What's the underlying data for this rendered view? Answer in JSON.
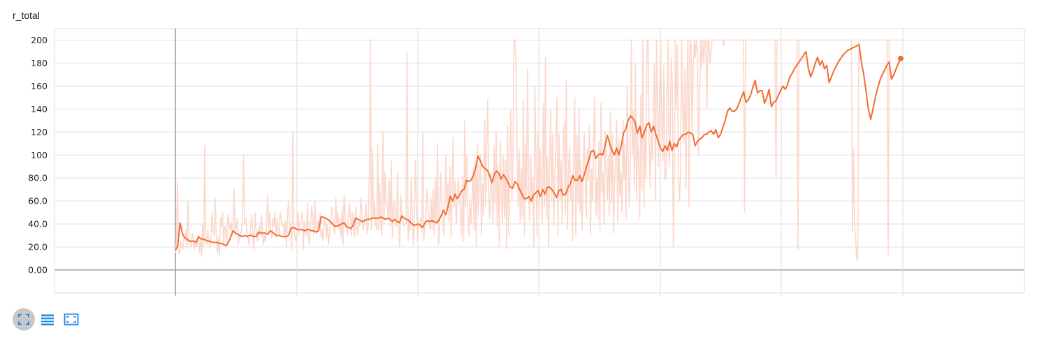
{
  "card": {
    "title": "r_total"
  },
  "colors": {
    "smoothed": "#f36c35",
    "raw": "#fbd8cc",
    "grid": "#dddddd",
    "axis": "#999999"
  },
  "toolbar": {
    "buttons": [
      {
        "name": "fit-domain-button",
        "icon": "expand-icon",
        "active": true
      },
      {
        "name": "toggle-log-button",
        "icon": "list-lines-icon",
        "active": false
      },
      {
        "name": "toggle-zoom-button",
        "icon": "dotted-frame-icon",
        "active": false
      }
    ]
  },
  "chart_data": {
    "type": "line",
    "title": "r_total",
    "xlabel": "",
    "ylabel": "",
    "ylim": [
      -20,
      210
    ],
    "yticks": [
      0,
      20,
      40,
      60,
      80,
      100,
      120,
      140,
      160,
      180,
      200
    ],
    "ytick_labels": [
      "0.00",
      "20.0",
      "40.0",
      "60.0",
      "80.0",
      "100",
      "120",
      "140",
      "160",
      "180",
      "200"
    ],
    "grid": true,
    "x_tick_labels_visible": false,
    "series": [
      {
        "role": "raw",
        "values": [
          15,
          25,
          78,
          15,
          14,
          25,
          20,
          18,
          28,
          25,
          35,
          18,
          60,
          30,
          22,
          20,
          32,
          28,
          18,
          24,
          20,
          25,
          30,
          15,
          28,
          12,
          40,
          20,
          108,
          30,
          22,
          35,
          25,
          20,
          28,
          50,
          35,
          30,
          62,
          30,
          15,
          28,
          12,
          45,
          38,
          50,
          22,
          38,
          35,
          22,
          48,
          40,
          35,
          42,
          30,
          38,
          70,
          30,
          38,
          45,
          22,
          30,
          28,
          35,
          42,
          100,
          40,
          45,
          35,
          30,
          22,
          28,
          40,
          48,
          25,
          18,
          50,
          35,
          25,
          28,
          38,
          30,
          48,
          35,
          22,
          30,
          25,
          40,
          65,
          35,
          50,
          33,
          28,
          45,
          38,
          50,
          28,
          45,
          35,
          30,
          50,
          45,
          38,
          40,
          28,
          42,
          20,
          50,
          60,
          40,
          35,
          18,
          120,
          40,
          28,
          25,
          35,
          50,
          30,
          42,
          45,
          50,
          18,
          42,
          35,
          30,
          58,
          28,
          22,
          40,
          55,
          48,
          30,
          60,
          38,
          32,
          42,
          35,
          50,
          28,
          35,
          25,
          45,
          42,
          28,
          40,
          22,
          30,
          40,
          55,
          48,
          38,
          32,
          62,
          40,
          50,
          35,
          45,
          28,
          55,
          22,
          65,
          48,
          35,
          30,
          45,
          58,
          48,
          30,
          50,
          40,
          28,
          55,
          38,
          30,
          42,
          38,
          62,
          50,
          35,
          40,
          48,
          58,
          32,
          38,
          78,
          200,
          35,
          105,
          45,
          58,
          40,
          35,
          110,
          35,
          75,
          38,
          30,
          120,
          40,
          85,
          60,
          55,
          45,
          78,
          38,
          95,
          28,
          55,
          60,
          40,
          38,
          85,
          35,
          20,
          65,
          48,
          42,
          38,
          40,
          40,
          190,
          25,
          45,
          35,
          80,
          50,
          22,
          40,
          95,
          60,
          25,
          40,
          38,
          45,
          32,
          120,
          25,
          40,
          48,
          70,
          55,
          45,
          35,
          62,
          35,
          70,
          30,
          80,
          40,
          110,
          22,
          35,
          85,
          70,
          48,
          30,
          55,
          100,
          48,
          75,
          42,
          90,
          28,
          70,
          115,
          55,
          78,
          40,
          65,
          80,
          60,
          50,
          30,
          82,
          25,
          130,
          55,
          100,
          45,
          30,
          62,
          40,
          60,
          88,
          35,
          95,
          20,
          110,
          48,
          80,
          100,
          30,
          75,
          48,
          130,
          55,
          110,
          148,
          60,
          45,
          85,
          72,
          40,
          108,
          58,
          120,
          38,
          90,
          20,
          112,
          65,
          40,
          100,
          45,
          95,
          18,
          125,
          30,
          85,
          140,
          60,
          95,
          200,
          200,
          180,
          108,
          55,
          105,
          40,
          88,
          45,
          148,
          30,
          110,
          65,
          175,
          68,
          42,
          100,
          58,
          80,
          20,
          160,
          95,
          30,
          120,
          45,
          105,
          72,
          40,
          145,
          55,
          185,
          45,
          98,
          20,
          88,
          140,
          60,
          118,
          38,
          80,
          110,
          150,
          30,
          118,
          60,
          95,
          40,
          110,
          128,
          48,
          165,
          35,
          85,
          108,
          60,
          75,
          25,
          100,
          150,
          30,
          118,
          58,
          140,
          50,
          95,
          35,
          75,
          120,
          82,
          45,
          105,
          78,
          125,
          30,
          88,
          60,
          110,
          150,
          48,
          80,
          45,
          112,
          35,
          145,
          68,
          85,
          40,
          120,
          82,
          60,
          100,
          48,
          138,
          58,
          118,
          32,
          75,
          95,
          130,
          42,
          115,
          65,
          85,
          50,
          130,
          78,
          110,
          45,
          160,
          98,
          55,
          88,
          200,
          100,
          138,
          70,
          180,
          62,
          118,
          95,
          45,
          152,
          70,
          200,
          55,
          120,
          80,
          200,
          200,
          110,
          72,
          120,
          95,
          140,
          180,
          60,
          200,
          145,
          90,
          160,
          200,
          130,
          95,
          178,
          78,
          80,
          150,
          200,
          90,
          115,
          185,
          165,
          20,
          100,
          200,
          140,
          195,
          80,
          60,
          85,
          200,
          140,
          110,
          175,
          70,
          158,
          200,
          55,
          200,
          195,
          120,
          175,
          200,
          185,
          200,
          190,
          100,
          145,
          200,
          175,
          200,
          180,
          200,
          200,
          140,
          200,
          200,
          180,
          190,
          200,
          200,
          200,
          200,
          200,
          200,
          200,
          200,
          200,
          200,
          200,
          195,
          200,
          200,
          200,
          200,
          200,
          200,
          200,
          200,
          200,
          200,
          200,
          200,
          200,
          200,
          200,
          200,
          200,
          200,
          200,
          50,
          200,
          200,
          200,
          200,
          200,
          200,
          200,
          200,
          200,
          200,
          200,
          200,
          200,
          200,
          200,
          200,
          200,
          200,
          200,
          200,
          200,
          200,
          200,
          200,
          200,
          200,
          200,
          200,
          200,
          80,
          200,
          200,
          200,
          200,
          200,
          200,
          200,
          200,
          200,
          200,
          200,
          200,
          200,
          200,
          200,
          200,
          200,
          200,
          200,
          200,
          18,
          200,
          200,
          200,
          200,
          200,
          200,
          200,
          200,
          200,
          200,
          200,
          200,
          200,
          200,
          200,
          200,
          200,
          200,
          200,
          200,
          200,
          200,
          200,
          200,
          200,
          200,
          200,
          200,
          200,
          200,
          200,
          200,
          200,
          200,
          200,
          200,
          200,
          200,
          200,
          200,
          200,
          200,
          200,
          200,
          200,
          200,
          200,
          200,
          200,
          200,
          200,
          33,
          105,
          40,
          25,
          10,
          8,
          200,
          200,
          200,
          200,
          200,
          200,
          200,
          200,
          200,
          200,
          200,
          200,
          200,
          200,
          200,
          200,
          200,
          200,
          200,
          200,
          200,
          200,
          200,
          200,
          200,
          200,
          200,
          200,
          13,
          200,
          200,
          200,
          200,
          200,
          200,
          200,
          200,
          200,
          200,
          200,
          200
        ]
      },
      {
        "role": "smoothed",
        "values": [
          17,
          21,
          41,
          32,
          28,
          27,
          25,
          25,
          25,
          24,
          29,
          27,
          27,
          26,
          25,
          25,
          24,
          24,
          24,
          23,
          23,
          22,
          21,
          24,
          29,
          34,
          32,
          31,
          30,
          29,
          30,
          29,
          30,
          30,
          29,
          29,
          33,
          32,
          32,
          32,
          31,
          34,
          33,
          31,
          30,
          30,
          29,
          29,
          29,
          30,
          36,
          37,
          36,
          35,
          35,
          35,
          34,
          35,
          35,
          34,
          34,
          33,
          34,
          46,
          46,
          45,
          44,
          42,
          40,
          38,
          38,
          39,
          40,
          41,
          38,
          37,
          36,
          39,
          45,
          44,
          43,
          42,
          43,
          44,
          44,
          45,
          45,
          45,
          45,
          46,
          45,
          44,
          45,
          44,
          42,
          44,
          42,
          41,
          47,
          45,
          44,
          43,
          41,
          39,
          39,
          40,
          39,
          37,
          41,
          43,
          42,
          43,
          42,
          41,
          43,
          47,
          52,
          48,
          55,
          64,
          60,
          66,
          62,
          65,
          69,
          70,
          78,
          77,
          78,
          82,
          89,
          99,
          95,
          90,
          88,
          87,
          82,
          76,
          83,
          86,
          84,
          79,
          83,
          80,
          76,
          72,
          71,
          77,
          75,
          70,
          66,
          62,
          62,
          64,
          60,
          65,
          67,
          69,
          64,
          70,
          66,
          72,
          72,
          70,
          67,
          63,
          69,
          70,
          65,
          66,
          72,
          75,
          82,
          78,
          78,
          82,
          77,
          83,
          90,
          96,
          103,
          104,
          97,
          100,
          101,
          100,
          108,
          117,
          110,
          104,
          100,
          106,
          100,
          108,
          119,
          123,
          130,
          134,
          132,
          129,
          119,
          125,
          115,
          120,
          126,
          128,
          120,
          125,
          118,
          112,
          106,
          103,
          108,
          104,
          112,
          104,
          110,
          107,
          113,
          116,
          118,
          118,
          120,
          119,
          118,
          108,
          112,
          114,
          115,
          118,
          118,
          120,
          121,
          118,
          122,
          115,
          118,
          124,
          130,
          138,
          141,
          138,
          138,
          140,
          145,
          150,
          155,
          146,
          148,
          152,
          159,
          165,
          154,
          156,
          156,
          145,
          150,
          157,
          142,
          146,
          147,
          152,
          156,
          160,
          157,
          161,
          168,
          171,
          175,
          178,
          181,
          184,
          187,
          190,
          175,
          168,
          173,
          180,
          185,
          178,
          182,
          175,
          178,
          163,
          168,
          173,
          177,
          181,
          184,
          187,
          189,
          191,
          192,
          193,
          194,
          195,
          196,
          180,
          170,
          155,
          140,
          131,
          140,
          150,
          158,
          165,
          170,
          174,
          178,
          181,
          166,
          170,
          175,
          180,
          184
        ]
      }
    ]
  }
}
